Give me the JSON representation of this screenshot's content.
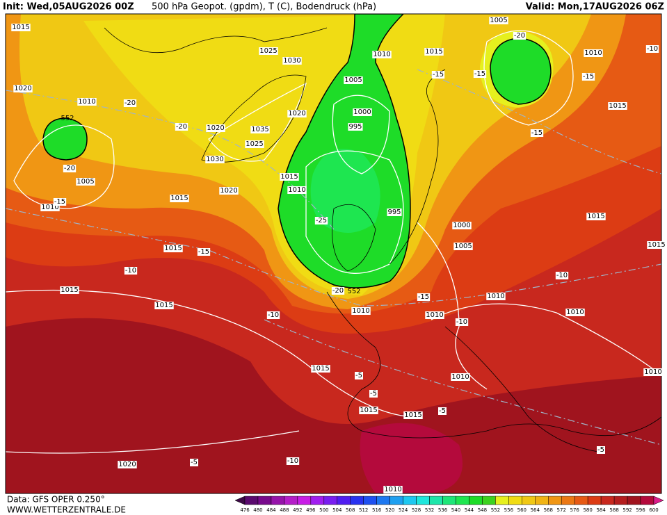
{
  "header": {
    "init": "Init: Wed,05AUG2026 00Z",
    "title": "500 hPa Geopot. (gpdm), T (C), Bodendruck (hPa)",
    "valid": "Valid: Mon,17AUG2026 06Z"
  },
  "map": {
    "isobar_labels": [
      "1015",
      "1025",
      "1030",
      "1010",
      "1015",
      "1005",
      "1010",
      "1020",
      "1010",
      "1005",
      "1020",
      "1000",
      "1015",
      "995",
      "1020",
      "1035",
      "1025",
      "1030",
      "1005",
      "1015",
      "1010",
      "1020",
      "1015",
      "1010",
      "995",
      "1015",
      "1000",
      "1015",
      "1005",
      "1015",
      "1010",
      "1015",
      "1010",
      "1010",
      "1010",
      "1015",
      "1010",
      "1010",
      "1015",
      "1015",
      "1020",
      "1010",
      "1015"
    ],
    "temperature_labels": [
      "-20",
      "-10",
      "-15",
      "-15",
      "-15",
      "-20",
      "-20",
      "-15",
      "-20",
      "-15",
      "-25",
      "-15",
      "-10",
      "-10",
      "-20",
      "-15",
      "-10",
      "-10",
      "-5",
      "-5",
      "-5",
      "-10",
      "-5",
      "-5"
    ],
    "geopotential_labels": [
      "552",
      "552"
    ]
  },
  "colorbar": {
    "ticks": [
      476,
      480,
      484,
      488,
      492,
      496,
      500,
      504,
      508,
      512,
      516,
      520,
      524,
      528,
      532,
      536,
      540,
      544,
      548,
      552,
      556,
      560,
      564,
      568,
      572,
      576,
      580,
      584,
      588,
      592,
      596,
      600
    ],
    "colors": [
      "#3c0a46",
      "#5a0a6e",
      "#780a8c",
      "#9614aa",
      "#b41ec8",
      "#c81ee6",
      "#a01ef0",
      "#781ef0",
      "#501ef0",
      "#2832f0",
      "#1e50f0",
      "#1e78f0",
      "#1ea0f0",
      "#1ec8f0",
      "#1ee6dc",
      "#1ee6aa",
      "#1ee678",
      "#1ee650",
      "#1edc28",
      "#3cd21e",
      "#e6f01e",
      "#f0dc14",
      "#f0c814",
      "#f0b414",
      "#f09614",
      "#eb7814",
      "#e65a14",
      "#dc3c14",
      "#c8281e",
      "#b41e1e",
      "#a0141e",
      "#b40a3c",
      "#dc1e8c"
    ]
  },
  "footer": {
    "data": "Data: GFS OPER 0.250°",
    "site": "WWW.WETTERZENTRALE.DE"
  }
}
